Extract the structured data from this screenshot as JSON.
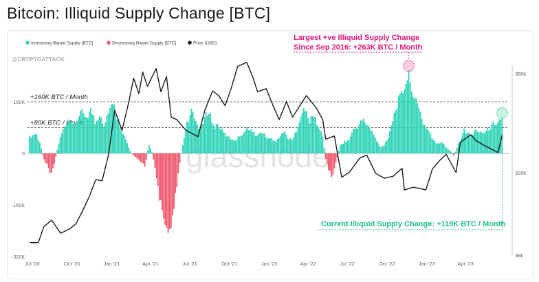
{
  "title": "Bitcoin: Illiquid Supply Change [BTC]",
  "watermark": "@CRYPTOATTACK",
  "brand_watermark": "glassnode",
  "colors": {
    "increase": "#2ed3b7",
    "decrease": "#f0566c",
    "price": "#1a1a1a",
    "pink_annotation": "#e0167a",
    "green_annotation": "#1fbf8f"
  },
  "chart_data": {
    "type": "bar",
    "legend": [
      {
        "name": "Increasing Illiquid Supply [BTC]",
        "color": "#2ed3b7",
        "marker": "dot"
      },
      {
        "name": "Decreasing Illiquid Supply [BTC]",
        "color": "#f0566c",
        "marker": "dot"
      },
      {
        "name": "Price [USD]",
        "color": "#1a1a1a",
        "marker": "dot"
      }
    ],
    "legend_position": "top-left",
    "x_ticks": [
      "Jul '20",
      "Oct '20",
      "Jan '21",
      "Apr '21",
      "Jul '21",
      "Oct '21",
      "Jan '22",
      "Apr '22",
      "Jul '22",
      "Oct '22",
      "Jan '23",
      "Apr '23"
    ],
    "y_left_ticks": [
      "160K",
      "0",
      "-160K",
      "-320K"
    ],
    "y_right_ticks": [
      "$60k",
      "$20k",
      "$8k"
    ],
    "y_left_range": [
      -320000,
      320000
    ],
    "price_scale": "log",
    "reference_lines": [
      {
        "label": "+160K BTC / Month",
        "value": 160000
      },
      {
        "label": "+80K BTC / Month",
        "value": 80000
      }
    ],
    "annotations": [
      {
        "text_line1": "Largest +ve Illiquid Supply Change",
        "text_line2": "Since Sep 2016: +263K BTC / Month",
        "date": "2022-11-20",
        "value": 263000
      },
      {
        "text": "Current Illiquid Supply Change: +119K BTC / Month",
        "date": "2023-06-25",
        "value": 119000
      }
    ],
    "supply_change_series": [
      [
        "2020-06-25",
        55000
      ],
      [
        "2020-07-10",
        70000
      ],
      [
        "2020-07-20",
        30000
      ],
      [
        "2020-07-28",
        -20000
      ],
      [
        "2020-08-05",
        -40000
      ],
      [
        "2020-08-12",
        -70000
      ],
      [
        "2020-08-20",
        -45000
      ],
      [
        "2020-08-28",
        10000
      ],
      [
        "2020-09-05",
        60000
      ],
      [
        "2020-09-15",
        90000
      ],
      [
        "2020-09-25",
        110000
      ],
      [
        "2020-10-05",
        95000
      ],
      [
        "2020-10-15",
        120000
      ],
      [
        "2020-10-25",
        140000
      ],
      [
        "2020-11-05",
        125000
      ],
      [
        "2020-11-15",
        150000
      ],
      [
        "2020-11-25",
        100000
      ],
      [
        "2020-12-05",
        140000
      ],
      [
        "2020-12-15",
        90000
      ],
      [
        "2020-12-25",
        150000
      ],
      [
        "2021-01-05",
        165000
      ],
      [
        "2021-01-15",
        120000
      ],
      [
        "2021-01-25",
        80000
      ],
      [
        "2021-02-05",
        40000
      ],
      [
        "2021-02-12",
        10000
      ],
      [
        "2021-02-20",
        -5000
      ],
      [
        "2021-02-28",
        -15000
      ],
      [
        "2021-03-10",
        -30000
      ],
      [
        "2021-03-20",
        -45000
      ],
      [
        "2021-03-28",
        30000
      ],
      [
        "2021-04-05",
        5000
      ],
      [
        "2021-04-12",
        -50000
      ],
      [
        "2021-04-20",
        -140000
      ],
      [
        "2021-04-28",
        -190000
      ],
      [
        "2021-05-05",
        -230000
      ],
      [
        "2021-05-12",
        -250000
      ],
      [
        "2021-05-20",
        -230000
      ],
      [
        "2021-05-28",
        -160000
      ],
      [
        "2021-06-05",
        -60000
      ],
      [
        "2021-06-15",
        30000
      ],
      [
        "2021-06-25",
        100000
      ],
      [
        "2021-07-05",
        140000
      ],
      [
        "2021-07-15",
        110000
      ],
      [
        "2021-07-25",
        80000
      ],
      [
        "2021-08-05",
        120000
      ],
      [
        "2021-08-15",
        150000
      ],
      [
        "2021-08-25",
        90000
      ],
      [
        "2021-09-05",
        100000
      ],
      [
        "2021-09-15",
        75000
      ],
      [
        "2021-09-25",
        60000
      ],
      [
        "2021-10-05",
        50000
      ],
      [
        "2021-10-15",
        45000
      ],
      [
        "2021-10-25",
        60000
      ],
      [
        "2021-11-05",
        75000
      ],
      [
        "2021-11-15",
        90000
      ],
      [
        "2021-11-25",
        70000
      ],
      [
        "2021-12-05",
        60000
      ],
      [
        "2021-12-15",
        75000
      ],
      [
        "2021-12-25",
        55000
      ],
      [
        "2022-01-05",
        50000
      ],
      [
        "2022-01-15",
        40000
      ],
      [
        "2022-01-25",
        60000
      ],
      [
        "2022-02-05",
        75000
      ],
      [
        "2022-02-15",
        50000
      ],
      [
        "2022-02-25",
        45000
      ],
      [
        "2022-03-05",
        80000
      ],
      [
        "2022-03-15",
        130000
      ],
      [
        "2022-03-25",
        150000
      ],
      [
        "2022-04-05",
        110000
      ],
      [
        "2022-04-15",
        130000
      ],
      [
        "2022-04-25",
        90000
      ],
      [
        "2022-05-05",
        60000
      ],
      [
        "2022-05-12",
        -20000
      ],
      [
        "2022-05-20",
        -60000
      ],
      [
        "2022-05-28",
        -80000
      ],
      [
        "2022-06-05",
        -30000
      ],
      [
        "2022-06-15",
        30000
      ],
      [
        "2022-06-25",
        40000
      ],
      [
        "2022-07-05",
        45000
      ],
      [
        "2022-07-15",
        80000
      ],
      [
        "2022-07-25",
        90000
      ],
      [
        "2022-08-05",
        115000
      ],
      [
        "2022-08-15",
        100000
      ],
      [
        "2022-08-25",
        80000
      ],
      [
        "2022-09-05",
        50000
      ],
      [
        "2022-09-15",
        20000
      ],
      [
        "2022-09-25",
        30000
      ],
      [
        "2022-10-05",
        60000
      ],
      [
        "2022-10-15",
        120000
      ],
      [
        "2022-10-25",
        170000
      ],
      [
        "2022-11-05",
        200000
      ],
      [
        "2022-11-12",
        240000
      ],
      [
        "2022-11-20",
        263000
      ],
      [
        "2022-11-28",
        230000
      ],
      [
        "2022-12-05",
        180000
      ],
      [
        "2022-12-15",
        150000
      ],
      [
        "2022-12-25",
        100000
      ],
      [
        "2023-01-05",
        80000
      ],
      [
        "2023-01-15",
        50000
      ],
      [
        "2023-01-25",
        30000
      ],
      [
        "2023-02-05",
        40000
      ],
      [
        "2023-02-15",
        20000
      ],
      [
        "2023-02-25",
        10000
      ],
      [
        "2023-03-05",
        -10000
      ],
      [
        "2023-03-12",
        20000
      ],
      [
        "2023-03-20",
        50000
      ],
      [
        "2023-03-28",
        80000
      ],
      [
        "2023-04-05",
        70000
      ],
      [
        "2023-04-15",
        60000
      ],
      [
        "2023-04-25",
        80000
      ],
      [
        "2023-05-05",
        75000
      ],
      [
        "2023-05-15",
        70000
      ],
      [
        "2023-05-25",
        85000
      ],
      [
        "2023-06-05",
        100000
      ],
      [
        "2023-06-15",
        110000
      ],
      [
        "2023-06-25",
        119000
      ]
    ],
    "price_series": [
      [
        "2020-06-25",
        9200
      ],
      [
        "2020-07-15",
        9200
      ],
      [
        "2020-07-28",
        11000
      ],
      [
        "2020-08-15",
        11800
      ],
      [
        "2020-09-05",
        10200
      ],
      [
        "2020-09-25",
        10700
      ],
      [
        "2020-10-10",
        11300
      ],
      [
        "2020-10-25",
        13000
      ],
      [
        "2020-11-10",
        15300
      ],
      [
        "2020-11-25",
        18500
      ],
      [
        "2020-12-10",
        18300
      ],
      [
        "2020-12-25",
        24500
      ],
      [
        "2021-01-08",
        40000
      ],
      [
        "2021-01-25",
        32000
      ],
      [
        "2021-02-10",
        44000
      ],
      [
        "2021-02-21",
        57000
      ],
      [
        "2021-03-05",
        48000
      ],
      [
        "2021-03-14",
        61000
      ],
      [
        "2021-03-25",
        52000
      ],
      [
        "2021-04-14",
        63500
      ],
      [
        "2021-04-25",
        49000
      ],
      [
        "2021-05-08",
        58000
      ],
      [
        "2021-05-19",
        37000
      ],
      [
        "2021-06-01",
        36000
      ],
      [
        "2021-06-22",
        32000
      ],
      [
        "2021-07-20",
        29800
      ],
      [
        "2021-08-05",
        40000
      ],
      [
        "2021-08-23",
        49500
      ],
      [
        "2021-09-07",
        46800
      ],
      [
        "2021-09-21",
        42000
      ],
      [
        "2021-10-05",
        51000
      ],
      [
        "2021-10-20",
        65000
      ],
      [
        "2021-11-10",
        68000
      ],
      [
        "2021-11-25",
        57000
      ],
      [
        "2021-12-05",
        49000
      ],
      [
        "2021-12-25",
        50800
      ],
      [
        "2022-01-10",
        42000
      ],
      [
        "2022-01-24",
        36000
      ],
      [
        "2022-02-10",
        44000
      ],
      [
        "2022-02-24",
        37000
      ],
      [
        "2022-03-28",
        47000
      ],
      [
        "2022-04-20",
        41000
      ],
      [
        "2022-05-05",
        36000
      ],
      [
        "2022-05-12",
        29000
      ],
      [
        "2022-06-01",
        30000
      ],
      [
        "2022-06-18",
        19000
      ],
      [
        "2022-07-05",
        20000
      ],
      [
        "2022-07-30",
        23500
      ],
      [
        "2022-08-15",
        24300
      ],
      [
        "2022-09-05",
        19800
      ],
      [
        "2022-09-25",
        18800
      ],
      [
        "2022-10-15",
        19200
      ],
      [
        "2022-11-05",
        21000
      ],
      [
        "2022-11-10",
        16500
      ],
      [
        "2022-12-01",
        17000
      ],
      [
        "2022-12-30",
        16500
      ],
      [
        "2023-01-14",
        20800
      ],
      [
        "2023-02-01",
        23000
      ],
      [
        "2023-02-15",
        24500
      ],
      [
        "2023-03-10",
        20000
      ],
      [
        "2023-03-20",
        28000
      ],
      [
        "2023-04-13",
        30500
      ],
      [
        "2023-04-25",
        28500
      ],
      [
        "2023-05-15",
        27000
      ],
      [
        "2023-06-15",
        25000
      ],
      [
        "2023-06-25",
        30500
      ]
    ]
  }
}
